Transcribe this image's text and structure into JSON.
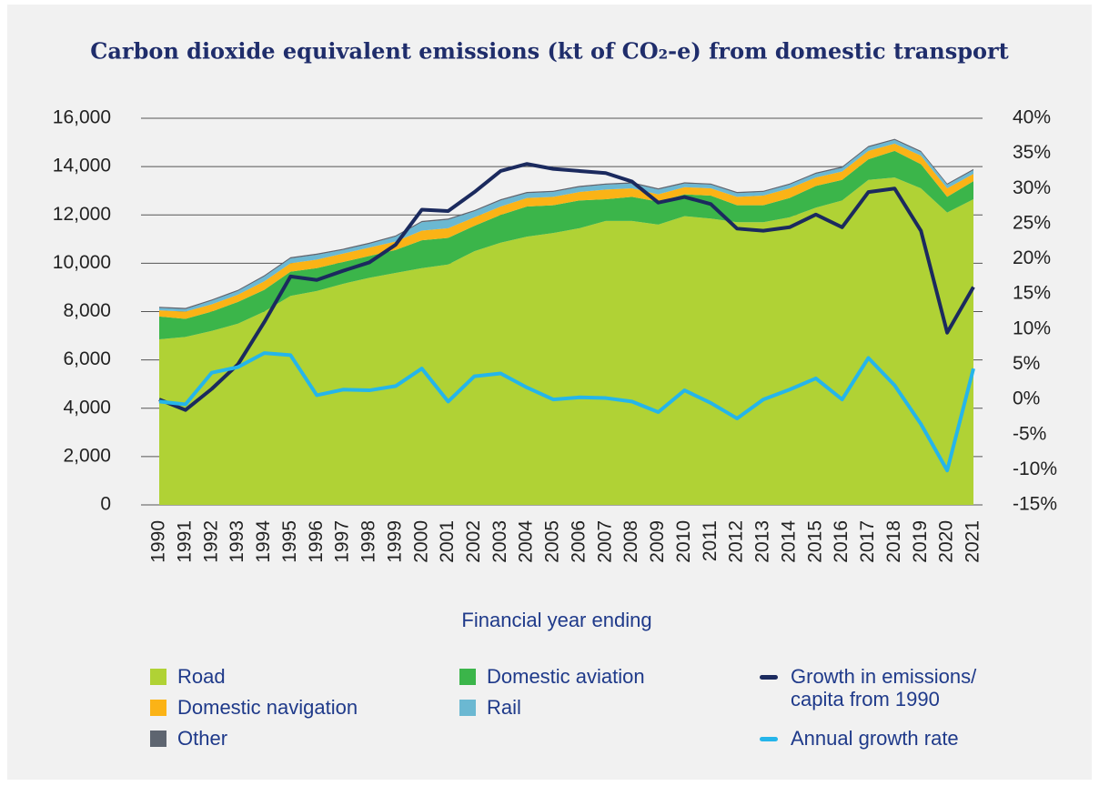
{
  "chart_data": {
    "type": "area",
    "title": "Carbon dioxide equivalent emissions (kt of CO₂-e) from domestic transport",
    "x_label": "Financial year ending",
    "categories": [
      "1990",
      "1991",
      "1992",
      "1993",
      "1994",
      "1995",
      "1996",
      "1997",
      "1998",
      "1999",
      "2000",
      "2001",
      "2002",
      "2003",
      "2004",
      "2005",
      "2006",
      "2007",
      "2008",
      "2009",
      "2010",
      "2011",
      "2012",
      "2013",
      "2014",
      "2015",
      "2016",
      "2017",
      "2018",
      "2019",
      "2020",
      "2021"
    ],
    "series": [
      {
        "name": "Road",
        "color": "#b0d235",
        "values": [
          6850,
          6950,
          7200,
          7500,
          8000,
          8650,
          8850,
          9150,
          9400,
          9600,
          9800,
          9950,
          10500,
          10850,
          11100,
          11250,
          11450,
          11750,
          11750,
          11600,
          11950,
          11850,
          11700,
          11700,
          11900,
          12300,
          12600,
          13450,
          13550,
          13100,
          12100,
          12650
        ]
      },
      {
        "name": "Domestic aviation",
        "color": "#3bb54a",
        "values": [
          950,
          750,
          800,
          900,
          900,
          1000,
          950,
          900,
          900,
          950,
          1150,
          1100,
          1050,
          1150,
          1250,
          1150,
          1150,
          900,
          1000,
          950,
          900,
          950,
          700,
          700,
          800,
          900,
          850,
          850,
          1100,
          1000,
          650,
          750
        ]
      },
      {
        "name": "Domestic navigation",
        "color": "#fbb316",
        "values": [
          250,
          300,
          300,
          300,
          350,
          350,
          350,
          350,
          350,
          350,
          400,
          400,
          350,
          350,
          350,
          350,
          350,
          400,
          350,
          300,
          300,
          300,
          350,
          400,
          400,
          350,
          350,
          350,
          300,
          350,
          350,
          300
        ]
      },
      {
        "name": "Rail",
        "color": "#6bb8d2",
        "values": [
          100,
          100,
          150,
          150,
          200,
          200,
          200,
          150,
          150,
          200,
          350,
          350,
          250,
          250,
          200,
          200,
          200,
          200,
          200,
          200,
          150,
          150,
          150,
          150,
          150,
          150,
          150,
          150,
          150,
          150,
          150,
          150
        ]
      },
      {
        "name": "Other",
        "color": "#5e6570",
        "values": [
          50,
          50,
          50,
          50,
          50,
          50,
          50,
          50,
          50,
          50,
          50,
          50,
          50,
          50,
          50,
          50,
          50,
          50,
          50,
          50,
          50,
          50,
          50,
          50,
          50,
          50,
          50,
          50,
          50,
          50,
          50,
          50
        ]
      },
      {
        "name": "Growth in emissions/ capita from 1990",
        "color": "#1b2a5e",
        "type": "line",
        "axis": "y2",
        "values": [
          0,
          -1.5,
          1.5,
          5,
          11,
          17.5,
          17,
          18.3,
          19.5,
          22,
          27,
          26.8,
          29.5,
          32.5,
          33.5,
          32.8,
          32.5,
          32.2,
          31,
          28,
          28.8,
          27.8,
          24.3,
          24,
          24.5,
          26.3,
          24.5,
          29.5,
          30,
          24,
          9.5,
          16
        ]
      },
      {
        "name": "Annual growth rate",
        "color": "#25b5ea",
        "type": "line",
        "axis": "y2",
        "values": [
          -0.3,
          -0.7,
          3.8,
          4.6,
          6.6,
          6.3,
          0.6,
          1.4,
          1.3,
          1.9,
          4.4,
          -0.3,
          3.3,
          3.7,
          1.7,
          0,
          0.3,
          0.2,
          -0.3,
          -1.8,
          1.3,
          -0.5,
          -2.7,
          0,
          1.4,
          3,
          0,
          5.9,
          2,
          -3.5,
          -10.1,
          4.4
        ]
      }
    ],
    "ylim": [
      0,
      16000
    ],
    "yticks": [
      0,
      {
        "value": 2000,
        "label": "2,000"
      },
      {
        "value": 4000,
        "label": "4,000"
      },
      {
        "value": 6000,
        "label": "6,000"
      },
      {
        "value": 8000,
        "label": "8,000"
      },
      {
        "value": 10000,
        "label": "10,000"
      },
      {
        "value": 12000,
        "label": "12,000"
      },
      {
        "value": 14000,
        "label": "14,000"
      },
      {
        "value": 16000,
        "label": "16,000"
      }
    ],
    "y2lim": [
      -15,
      40
    ],
    "y2ticks": [
      {
        "value": -15,
        "label": "-15%"
      },
      {
        "value": -10,
        "label": "-10%"
      },
      {
        "value": -5,
        "label": "-5%"
      },
      {
        "value": 0,
        "label": "0%"
      },
      {
        "value": 5,
        "label": "5%"
      },
      {
        "value": 10,
        "label": "10%"
      },
      {
        "value": 15,
        "label": "15%"
      },
      {
        "value": 20,
        "label": "20%"
      },
      {
        "value": 25,
        "label": "25%"
      },
      {
        "value": 30,
        "label": "30%"
      },
      {
        "value": 35,
        "label": "35%"
      },
      {
        "value": 40,
        "label": "40%"
      }
    ],
    "grid": true
  }
}
